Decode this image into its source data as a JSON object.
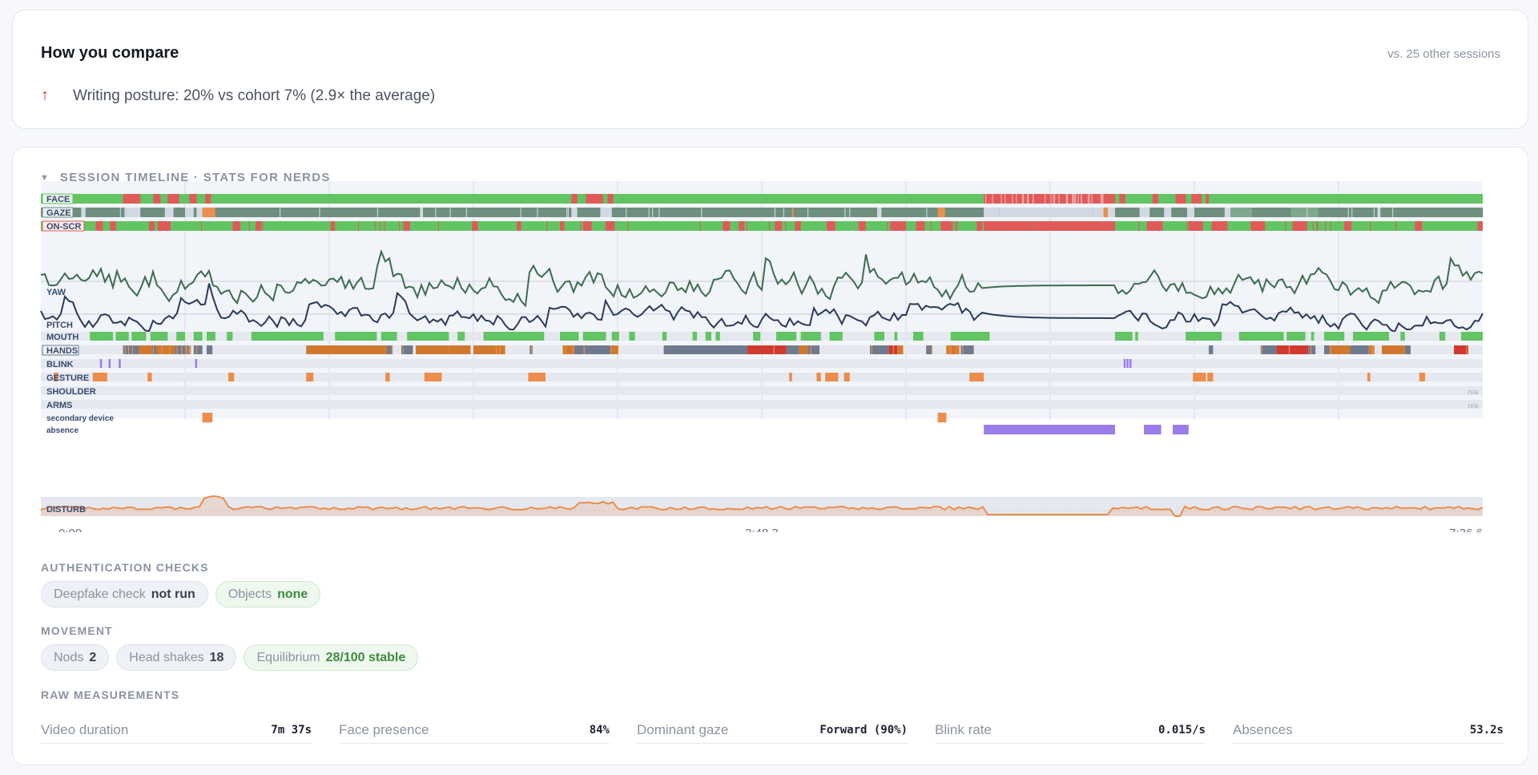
{
  "compare": {
    "title": "How you compare",
    "subtitle": "vs. 25 other sessions",
    "items": [
      {
        "icon": "arrow-up-icon",
        "text": "Writing posture: 20% vs cohort 7% (2.9× the average)"
      }
    ]
  },
  "timeline": {
    "title": "SESSION TIMELINE · STATS FOR NERDS",
    "time_labels": [
      "0:00",
      "3:48.3",
      "7:36.6"
    ],
    "track_labels": [
      "FACE",
      "GAZE",
      "ON-SCR",
      "YAW",
      "PITCH",
      "MOUTH",
      "HANDS",
      "BLINK",
      "GESTURE",
      "SHOULDER",
      "ARMS",
      "secondary device",
      "absence",
      "DISTURB"
    ],
    "na_label": "n/a",
    "colors": {
      "present": "#62c462",
      "absent": "#e05a5a",
      "gaze_forward": "#6e8f7d",
      "gaze_away": "#d3d9e3",
      "gaze_alt": "#e9904d",
      "hands_slate": "#6f7a8f",
      "hands_orange": "#d0792e",
      "hands_red": "#d03a30",
      "gesture": "#ec8d4b",
      "blink": "#9b7ce8",
      "absence": "#9b7ce8",
      "yaw_line": "#3e6b4e",
      "pitch_line": "#2b3a5a",
      "disturb_line": "#ec8d4b"
    }
  },
  "auth": {
    "title": "AUTHENTICATION CHECKS",
    "chips": [
      {
        "label": "Deepfake check",
        "value": "not run"
      },
      {
        "label": "Objects",
        "value": "none"
      }
    ]
  },
  "movement": {
    "title": "MOVEMENT",
    "chips": [
      {
        "label": "Nods",
        "value": "2"
      },
      {
        "label": "Head shakes",
        "value": "18"
      },
      {
        "label": "Equilibrium",
        "value": "28/100 stable"
      }
    ]
  },
  "raw": {
    "title": "RAW MEASUREMENTS",
    "items": [
      {
        "label": "Video duration",
        "value": "7m 37s"
      },
      {
        "label": "Face presence",
        "value": "84%"
      },
      {
        "label": "Dominant gaze",
        "value": "Forward (90%)"
      },
      {
        "label": "Blink rate",
        "value": "0.015/s"
      },
      {
        "label": "Absences",
        "value": "53.2s"
      }
    ]
  }
}
